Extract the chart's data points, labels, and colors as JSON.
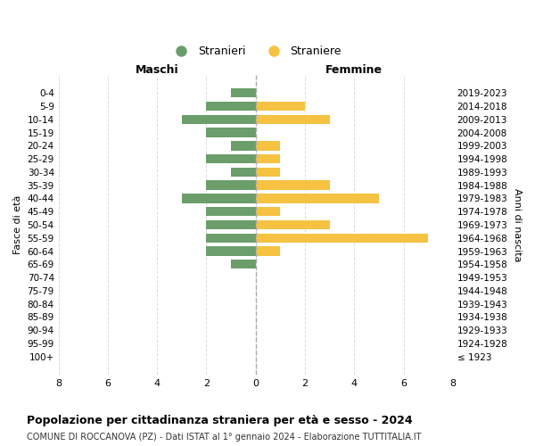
{
  "age_groups": [
    "100+",
    "95-99",
    "90-94",
    "85-89",
    "80-84",
    "75-79",
    "70-74",
    "65-69",
    "60-64",
    "55-59",
    "50-54",
    "45-49",
    "40-44",
    "35-39",
    "30-34",
    "25-29",
    "20-24",
    "15-19",
    "10-14",
    "5-9",
    "0-4"
  ],
  "birth_years": [
    "≤ 1923",
    "1924-1928",
    "1929-1933",
    "1934-1938",
    "1939-1943",
    "1944-1948",
    "1949-1953",
    "1954-1958",
    "1959-1963",
    "1964-1968",
    "1969-1973",
    "1974-1978",
    "1979-1983",
    "1984-1988",
    "1989-1993",
    "1994-1998",
    "1999-2003",
    "2004-2008",
    "2009-2013",
    "2014-2018",
    "2019-2023"
  ],
  "males": [
    0,
    0,
    0,
    0,
    0,
    0,
    0,
    1,
    2,
    2,
    2,
    2,
    3,
    2,
    1,
    2,
    1,
    2,
    3,
    2,
    1
  ],
  "females": [
    0,
    0,
    0,
    0,
    0,
    0,
    0,
    0,
    1,
    7,
    3,
    1,
    5,
    3,
    1,
    1,
    1,
    0,
    3,
    2,
    0
  ],
  "color_male": "#6b9e6b",
  "color_female": "#f5c242",
  "title": "Popolazione per cittadinanza straniera per età e sesso - 2024",
  "subtitle": "COMUNE DI ROCCANOVA (PZ) - Dati ISTAT al 1° gennaio 2024 - Elaborazione TUTTITALIA.IT",
  "xlabel_left": "Maschi",
  "xlabel_right": "Femmine",
  "ylabel_left": "Fasce di età",
  "ylabel_right": "Anni di nascita",
  "legend_male": "Stranieri",
  "legend_female": "Straniere",
  "xlim": 8,
  "background_color": "#ffffff",
  "grid_color": "#dddddd"
}
